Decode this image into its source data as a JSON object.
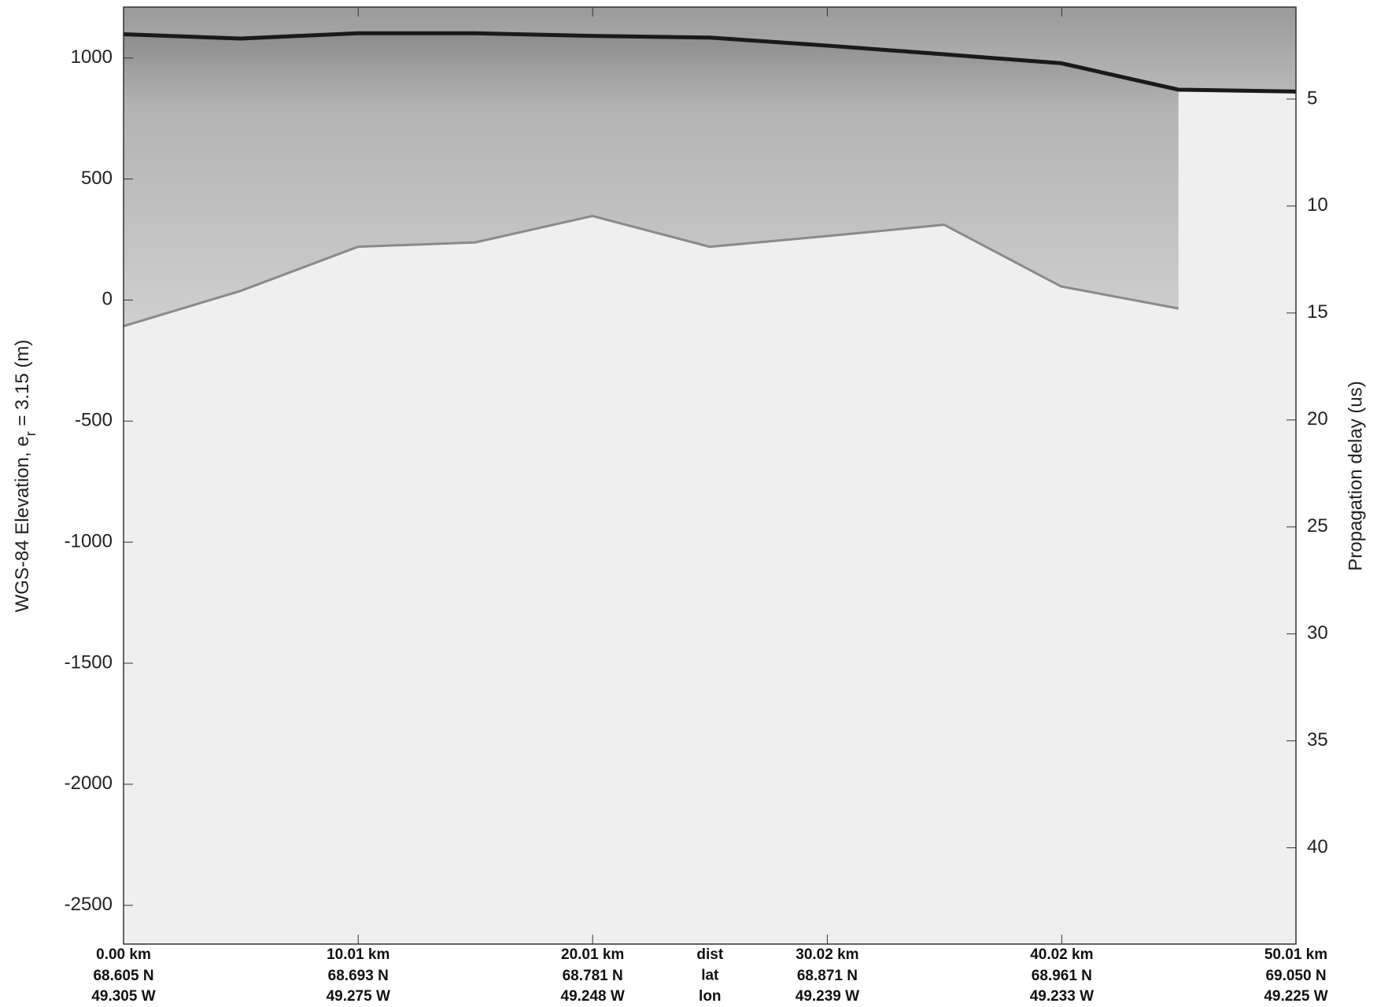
{
  "chart_data": {
    "type": "echogram",
    "ylabel": [
      "WGS-84 Elevation, e",
      "r",
      " = 3.15 (m)"
    ],
    "y2label": "Propagation delay (us)",
    "xlim": [
      0,
      50.01
    ],
    "ylim": [
      -2660,
      1210
    ],
    "yticks": [
      -2500,
      -2000,
      -1500,
      -1000,
      -500,
      0,
      500,
      1000
    ],
    "y2lim": [
      0.7,
      44.5
    ],
    "y2_inverted": true,
    "y2ticks": [
      5,
      10,
      15,
      20,
      25,
      30,
      35,
      40
    ],
    "xticks": [
      {
        "value": 0,
        "label": "0.00 km"
      },
      {
        "value": 10.01,
        "label": "10.01 km"
      },
      {
        "value": 20.01,
        "label": "20.01 km"
      },
      {
        "value": 30.02,
        "label": "30.02 km"
      },
      {
        "value": 40.02,
        "label": "40.02 km"
      },
      {
        "value": 50.01,
        "label": "50.01 km"
      }
    ],
    "row_labels": [
      "dist",
      "lat",
      "lon"
    ],
    "lat_labels": [
      "68.605 N",
      "68.693 N",
      "68.781 N",
      "68.871 N",
      "68.961 N",
      "69.050 N"
    ],
    "lon_labels": [
      "49.305 W",
      "49.275 W",
      "49.248 W",
      "49.239 W",
      "49.233 W",
      "49.225 W"
    ],
    "x": [
      0,
      5,
      10,
      15,
      20,
      25,
      30,
      35,
      40,
      45,
      50
    ],
    "surface": {
      "color": "#1a1a1a",
      "values": [
        1098,
        1080,
        1102,
        1102,
        1091,
        1084,
        1051,
        1015,
        978,
        869,
        861
      ]
    },
    "bed": {
      "color": "#8a8a8a",
      "values": [
        -108,
        38,
        220,
        238,
        347,
        220,
        264,
        311,
        56,
        -35,
        null
      ]
    }
  }
}
